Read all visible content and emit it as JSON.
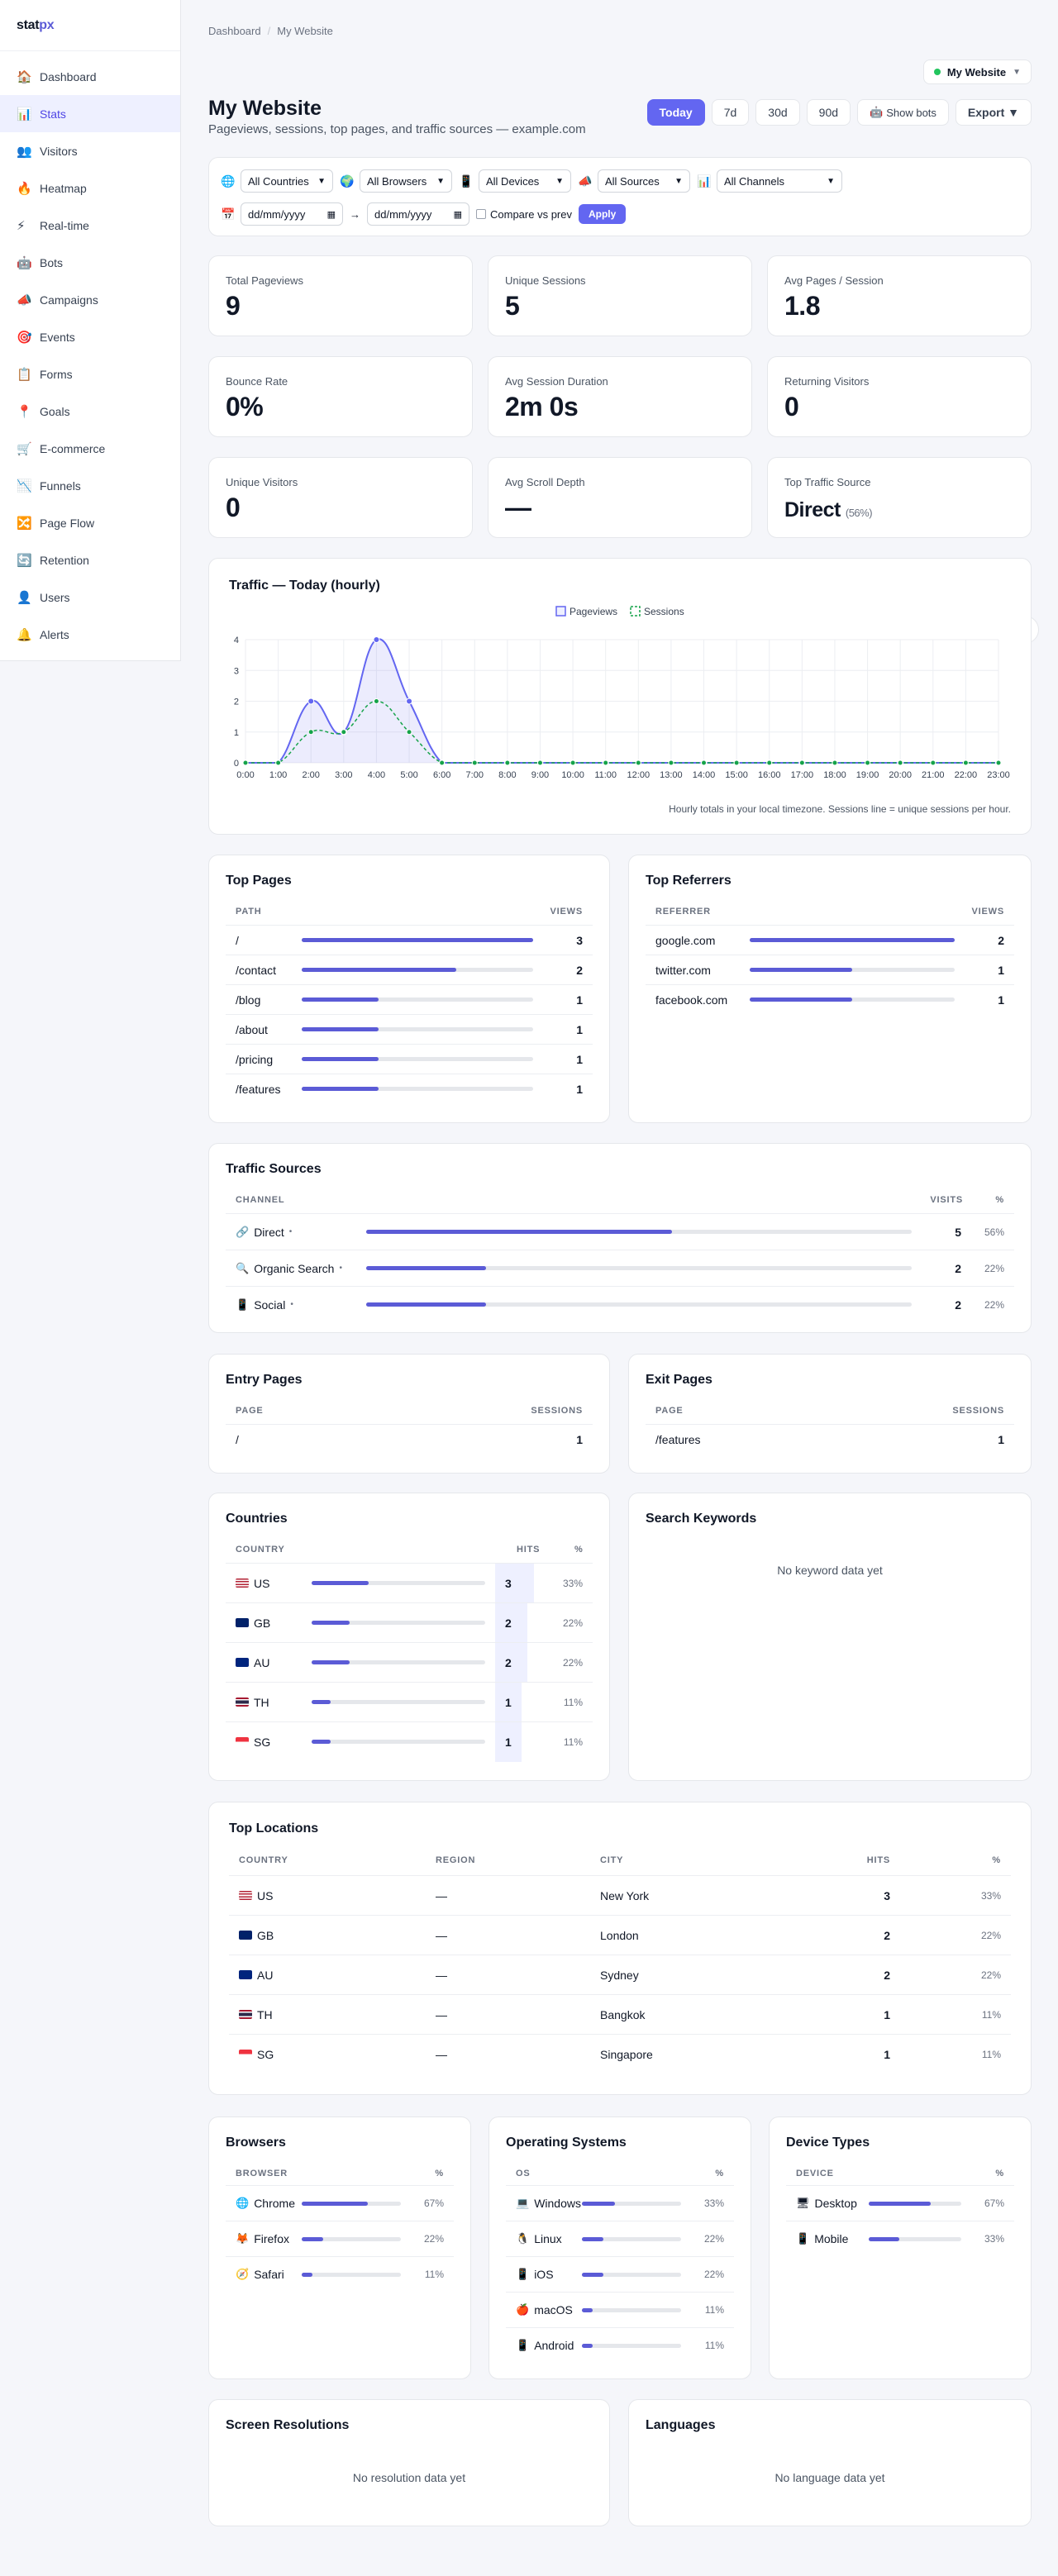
{
  "app": {
    "logo_a": "stat",
    "logo_b": "px"
  },
  "sidebar": {
    "items": [
      {
        "icon": "🏠",
        "icon_name": "home-icon",
        "label": "Dashboard"
      },
      {
        "icon": "📊",
        "icon_name": "stats-icon",
        "label": "Stats"
      },
      {
        "icon": "👥",
        "icon_name": "visitors-icon",
        "label": "Visitors"
      },
      {
        "icon": "🔥",
        "icon_name": "heatmap-icon",
        "label": "Heatmap"
      },
      {
        "icon": "⚡",
        "icon_name": "realtime-icon",
        "label": "Real-time"
      },
      {
        "icon": "🤖",
        "icon_name": "bots-icon",
        "label": "Bots"
      },
      {
        "icon": "📣",
        "icon_name": "campaigns-icon",
        "label": "Campaigns"
      },
      {
        "icon": "🎯",
        "icon_name": "events-icon",
        "label": "Events"
      },
      {
        "icon": "📋",
        "icon_name": "forms-icon",
        "label": "Forms"
      },
      {
        "icon": "📍",
        "icon_name": "goals-icon",
        "label": "Goals"
      },
      {
        "icon": "🛒",
        "icon_name": "ecommerce-icon",
        "label": "E-commerce"
      },
      {
        "icon": "📉",
        "icon_name": "funnels-icon",
        "label": "Funnels"
      },
      {
        "icon": "🔀",
        "icon_name": "pageflow-icon",
        "label": "Page Flow"
      },
      {
        "icon": "🔄",
        "icon_name": "retention-icon",
        "label": "Retention"
      },
      {
        "icon": "👤",
        "icon_name": "users-icon",
        "label": "Users"
      },
      {
        "icon": "🔔",
        "icon_name": "alerts-icon",
        "label": "Alerts"
      }
    ]
  },
  "header": {
    "breadcrumb": [
      "Dashboard",
      "My Website"
    ],
    "site": "My Website",
    "title": "My Website",
    "subtitle": "Pageviews, sessions, top pages, and traffic sources — example.com",
    "ranges": [
      "Today",
      "7d",
      "30d",
      "90d"
    ],
    "show_bots": "Show bots",
    "export": "Export ▼"
  },
  "filters": {
    "countries": "All Countries",
    "browsers": "All Browsers",
    "devices": "All Devices",
    "sources": "All Sources",
    "channels": "All Channels",
    "date_from": "dd/mm/yyyy",
    "date_to": "dd/mm/yyyy",
    "arrow": "→",
    "compare": "Compare vs prev",
    "apply": "Apply"
  },
  "kpis": [
    {
      "label": "Total Pageviews",
      "value": "9"
    },
    {
      "label": "Unique Sessions",
      "value": "5"
    },
    {
      "label": "Avg Pages / Session",
      "value": "1.8"
    },
    {
      "label": "Bounce Rate",
      "value": "0%"
    },
    {
      "label": "Avg Session Duration",
      "value": "2m 0s"
    },
    {
      "label": "Returning Visitors",
      "value": "0"
    },
    {
      "label": "Unique Visitors",
      "value": "0"
    },
    {
      "label": "Avg Scroll Depth",
      "value": "—"
    },
    {
      "label": "Top Traffic Source",
      "value": "Direct",
      "note": "(56%)"
    }
  ],
  "traffic": {
    "title": "Traffic — Today (hourly)",
    "note": "Hourly totals in your local timezone. Sessions line = unique sessions per hour."
  },
  "chart_data": {
    "type": "line",
    "x": [
      "0:00",
      "1:00",
      "2:00",
      "3:00",
      "4:00",
      "5:00",
      "6:00",
      "7:00",
      "8:00",
      "9:00",
      "10:00",
      "11:00",
      "12:00",
      "13:00",
      "14:00",
      "15:00",
      "16:00",
      "17:00",
      "18:00",
      "19:00",
      "20:00",
      "21:00",
      "22:00",
      "23:00"
    ],
    "series": [
      {
        "name": "Pageviews",
        "color": "#6366f1",
        "values": [
          0,
          0,
          2,
          1,
          4,
          2,
          0,
          0,
          0,
          0,
          0,
          0,
          0,
          0,
          0,
          0,
          0,
          0,
          0,
          0,
          0,
          0,
          0,
          0
        ]
      },
      {
        "name": "Sessions",
        "color": "#16a34a",
        "values": [
          0,
          0,
          1,
          1,
          2,
          1,
          0,
          0,
          0,
          0,
          0,
          0,
          0,
          0,
          0,
          0,
          0,
          0,
          0,
          0,
          0,
          0,
          0,
          0
        ]
      }
    ],
    "ylim": [
      0,
      4
    ],
    "yticks": [
      "0",
      "1",
      "2",
      "3",
      "4"
    ],
    "grid": true,
    "legend": "top-center"
  },
  "top_pages": {
    "title": "Top Pages",
    "h1": "PATH",
    "h2": "VIEWS",
    "rows": [
      {
        "label": "/",
        "value": "3",
        "frac": 1.0
      },
      {
        "label": "/contact",
        "value": "2",
        "frac": 0.667
      },
      {
        "label": "/blog",
        "value": "1",
        "frac": 0.333
      },
      {
        "label": "/about",
        "value": "1",
        "frac": 0.333
      },
      {
        "label": "/pricing",
        "value": "1",
        "frac": 0.333
      },
      {
        "label": "/features",
        "value": "1",
        "frac": 0.333
      }
    ]
  },
  "top_referrers": {
    "title": "Top Referrers",
    "h1": "REFERRER",
    "h2": "VIEWS",
    "rows": [
      {
        "label": "google.com",
        "value": "2",
        "frac": 1.0
      },
      {
        "label": "twitter.com",
        "value": "1",
        "frac": 0.5
      },
      {
        "label": "facebook.com",
        "value": "1",
        "frac": 0.5
      }
    ]
  },
  "sources": {
    "title": "Traffic Sources",
    "h1": "CHANNEL",
    "h2": "VISITS",
    "h3": "%",
    "rows": [
      {
        "icon": "🔗",
        "icon_name": "link-icon",
        "label": "Direct",
        "value": "5",
        "pct": "56%",
        "frac": 0.56
      },
      {
        "icon": "🔍",
        "icon_name": "search-icon",
        "label": "Organic Search",
        "value": "2",
        "pct": "22%",
        "frac": 0.22
      },
      {
        "icon": "📱",
        "icon_name": "phone-icon",
        "label": "Social",
        "value": "2",
        "pct": "22%",
        "frac": 0.22
      }
    ]
  },
  "entry_pages": {
    "title": "Entry Pages",
    "h1": "PAGE",
    "h2": "SESSIONS",
    "rows": [
      {
        "label": "/",
        "value": "1"
      }
    ]
  },
  "exit_pages": {
    "title": "Exit Pages",
    "h1": "PAGE",
    "h2": "SESSIONS",
    "rows": [
      {
        "label": "/features",
        "value": "1"
      }
    ]
  },
  "countries": {
    "title": "Countries",
    "h1": "COUNTRY",
    "h2": "HITS",
    "h3": "%",
    "rows": [
      {
        "code": "US",
        "value": "3",
        "pct": "33%",
        "frac": 0.33
      },
      {
        "code": "GB",
        "value": "2",
        "pct": "22%",
        "frac": 0.22
      },
      {
        "code": "AU",
        "value": "2",
        "pct": "22%",
        "frac": 0.22
      },
      {
        "code": "TH",
        "value": "1",
        "pct": "11%",
        "frac": 0.11
      },
      {
        "code": "SG",
        "value": "1",
        "pct": "11%",
        "frac": 0.11
      }
    ]
  },
  "keywords": {
    "title": "Search Keywords",
    "empty": "No keyword data yet"
  },
  "locations": {
    "title": "Top Locations",
    "h1": "COUNTRY",
    "h2": "REGION",
    "h3": "CITY",
    "h4": "HITS",
    "h5": "%",
    "rows": [
      {
        "code": "US",
        "region": "—",
        "city": "New York",
        "value": "3",
        "pct": "33%"
      },
      {
        "code": "GB",
        "region": "—",
        "city": "London",
        "value": "2",
        "pct": "22%"
      },
      {
        "code": "AU",
        "region": "—",
        "city": "Sydney",
        "value": "2",
        "pct": "22%"
      },
      {
        "code": "TH",
        "region": "—",
        "city": "Bangkok",
        "value": "1",
        "pct": "11%"
      },
      {
        "code": "SG",
        "region": "—",
        "city": "Singapore",
        "value": "1",
        "pct": "11%"
      }
    ]
  },
  "browsers": {
    "title": "Browsers",
    "h1": "BROWSER",
    "h2": "%",
    "rows": [
      {
        "icon": "🌐",
        "icon_name": "chrome-icon",
        "label": "Chrome",
        "pct": "67%",
        "frac": 0.67
      },
      {
        "icon": "🦊",
        "icon_name": "firefox-icon",
        "label": "Firefox",
        "pct": "22%",
        "frac": 0.22
      },
      {
        "icon": "🧭",
        "icon_name": "safari-icon",
        "label": "Safari",
        "pct": "11%",
        "frac": 0.11
      }
    ]
  },
  "os": {
    "title": "Operating Systems",
    "h1": "OS",
    "h2": "%",
    "rows": [
      {
        "icon": "💻",
        "icon_name": "windows-icon",
        "label": "Windows",
        "pct": "33%",
        "frac": 0.33
      },
      {
        "icon": "🐧",
        "icon_name": "linux-icon",
        "label": "Linux",
        "pct": "22%",
        "frac": 0.22
      },
      {
        "icon": "📱",
        "icon_name": "ios-icon",
        "label": "iOS",
        "pct": "22%",
        "frac": 0.22
      },
      {
        "icon": "🍎",
        "icon_name": "macos-icon",
        "label": "macOS",
        "pct": "11%",
        "frac": 0.11
      },
      {
        "icon": "📱",
        "icon_name": "android-icon",
        "label": "Android",
        "pct": "11%",
        "frac": 0.11
      }
    ]
  },
  "devices": {
    "title": "Device Types",
    "h1": "DEVICE",
    "h2": "%",
    "rows": [
      {
        "icon": "🖥",
        "icon_name": "desktop-icon",
        "label": "Desktop",
        "pct": "67%",
        "frac": 0.67
      },
      {
        "icon": "📱",
        "icon_name": "mobile-icon",
        "label": "Mobile",
        "pct": "33%",
        "frac": 0.33
      }
    ]
  },
  "resolutions": {
    "title": "Screen Resolutions",
    "empty": "No resolution data yet"
  },
  "languages": {
    "title": "Languages",
    "empty": "No language data yet"
  },
  "colors": {
    "accent": "#6366f1",
    "sessions": "#16a34a",
    "active_bg": "#eef0ff"
  }
}
